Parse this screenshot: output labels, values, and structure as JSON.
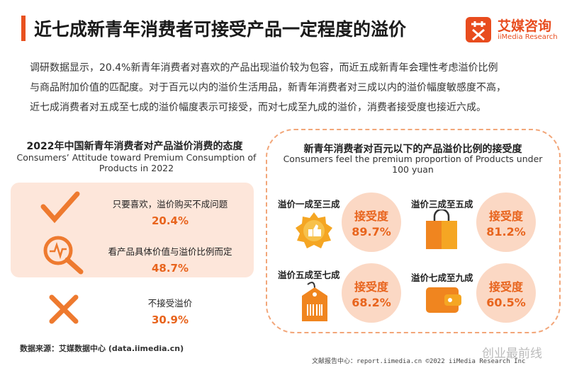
{
  "header": {
    "title": "近七成新青年消费者可接受产品一定程度的溢价",
    "logo_name": "艾媒咨询",
    "logo_sub": "iiMedia Research"
  },
  "intro": [
    "调研数据显示，20.4%新青年消费者对喜欢的产品出现溢价较为包容，而近五成新青年会理性考虑溢价比例",
    "与商品附加价值的匹配度。对于百元以内的溢价生活用品，新青年消费者对三成以内的溢价幅度敏感度不高，",
    "近七成消费者对五成至七成的溢价幅度表示可接受，而对七成至九成的溢价，消费者接受度也接近六成。"
  ],
  "left": {
    "title": "2022年中国新青年消费者对产品溢价消费的态度",
    "subtitle": "Consumers’ Attitude toward Premium Consumption of Products in 2022",
    "items": [
      {
        "label": "只要喜欢，溢价购买不成问题",
        "value": "20.4%"
      },
      {
        "label": "看产品具体价值与溢价比例而定",
        "value": "48.7%"
      },
      {
        "label": "不接受溢价",
        "value": "30.9%"
      }
    ]
  },
  "right": {
    "title": "新青年消费者对百元以下的产品溢价比例的接受度",
    "subtitle": "Consumers feel the premium proportion of Products under 100 yuan",
    "items": [
      {
        "label": "溢价一成至三成",
        "metric": "接受度",
        "value": "89.7%"
      },
      {
        "label": "溢价三成至五成",
        "metric": "接受度",
        "value": "81.2%"
      },
      {
        "label": "溢价五成至七成",
        "metric": "接受度",
        "value": "68.2%"
      },
      {
        "label": "溢价七成至九成",
        "metric": "接受度",
        "value": "60.5%"
      }
    ]
  },
  "source": "数据来源：艾媒数据中心 (data.iimedia.cn)",
  "footer": "文献报告中心：report.iimedia.cn ©2022 iiMedia Research Inc",
  "watermark": "创业最前线"
}
